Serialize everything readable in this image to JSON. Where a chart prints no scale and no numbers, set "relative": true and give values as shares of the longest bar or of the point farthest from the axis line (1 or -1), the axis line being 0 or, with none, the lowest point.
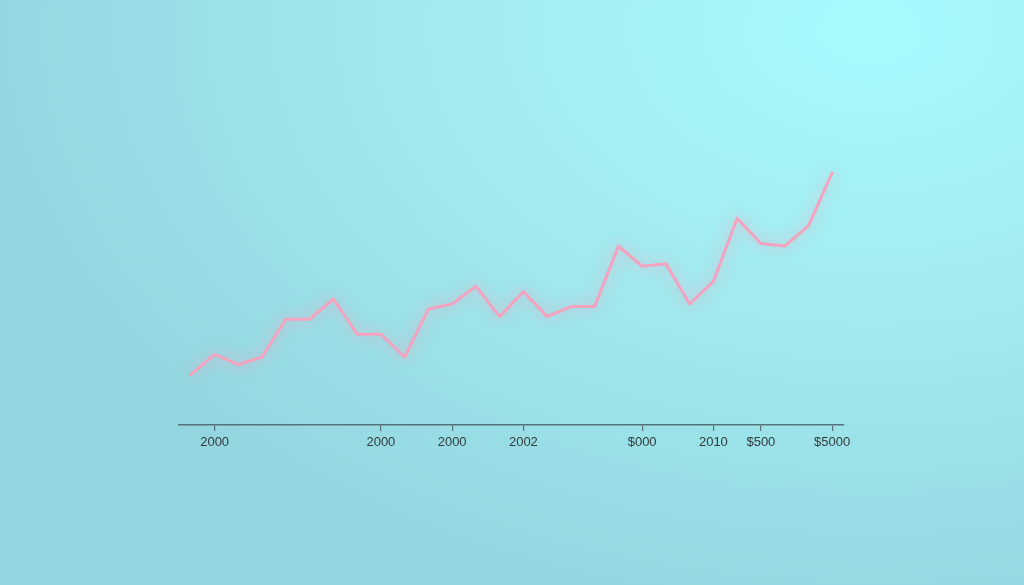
{
  "chart_data": {
    "type": "line",
    "relative": true,
    "categories": [
      null,
      "2000",
      null,
      null,
      null,
      null,
      null,
      null,
      "2000",
      null,
      null,
      "2000",
      null,
      null,
      "2002",
      null,
      null,
      null,
      null,
      "$000",
      null,
      null,
      "2010",
      null,
      "$500",
      null,
      null,
      "$5000"
    ],
    "series": [
      {
        "color": "#f4a3bf",
        "values": [
          0.2,
          0.28,
          0.24,
          0.27,
          0.42,
          0.42,
          0.5,
          0.36,
          0.36,
          0.27,
          0.46,
          0.48,
          0.55,
          0.43,
          0.53,
          0.43,
          0.47,
          0.47,
          0.71,
          0.63,
          0.64,
          0.48,
          0.57,
          0.82,
          0.72,
          0.71,
          0.79,
          1
        ]
      }
    ]
  }
}
